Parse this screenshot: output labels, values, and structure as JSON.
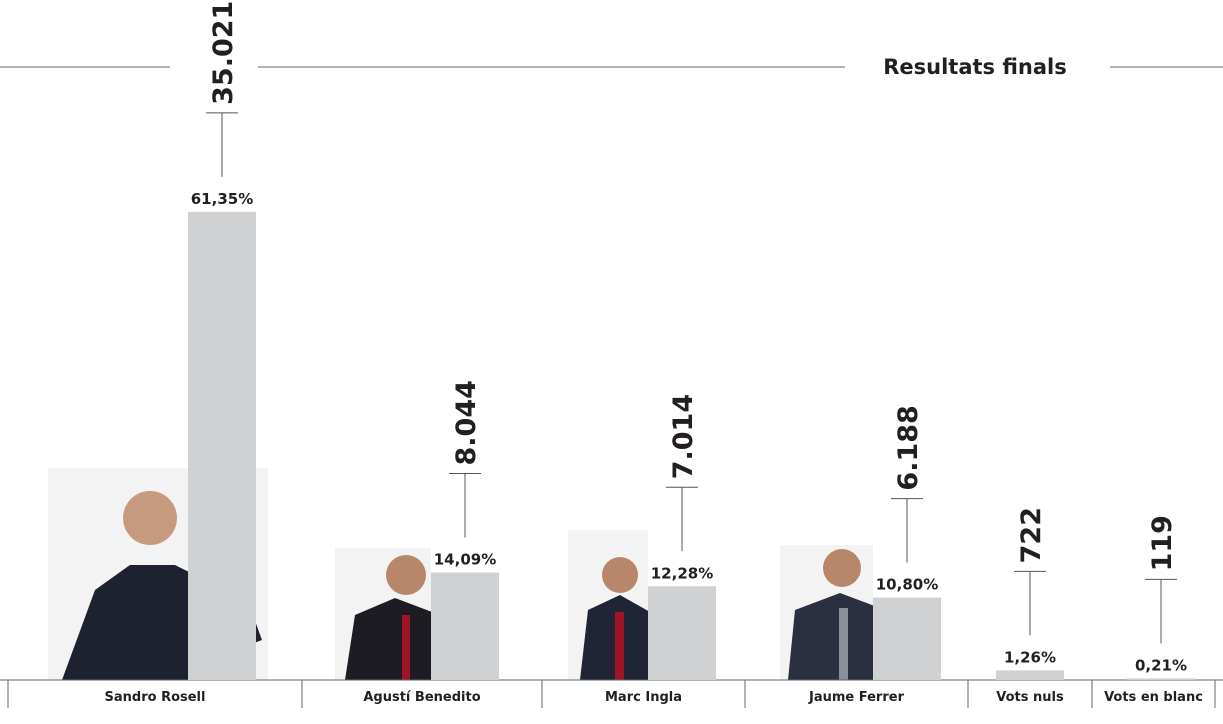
{
  "chart_data": {
    "type": "bar",
    "title": "Resultats finals",
    "categories": [
      "Sandro Rosell",
      "Agustí Benedito",
      "Marc Ingla",
      "Jaume Ferrer",
      "Vots nuls",
      "Vots en blanc"
    ],
    "values": [
      61.35,
      14.09,
      12.28,
      10.8,
      1.26,
      0.21
    ],
    "value_labels": [
      "61,35%",
      "14,09%",
      "12,28%",
      "10,80%",
      "1,26%",
      "0,21%"
    ],
    "votes": [
      35021,
      8044,
      7014,
      6188,
      722,
      119
    ],
    "vote_labels": [
      "35.021",
      "8.044",
      "7.014",
      "6.188",
      "722",
      "119"
    ],
    "color": "#d0d1d3",
    "ylim": [
      0,
      65
    ]
  }
}
